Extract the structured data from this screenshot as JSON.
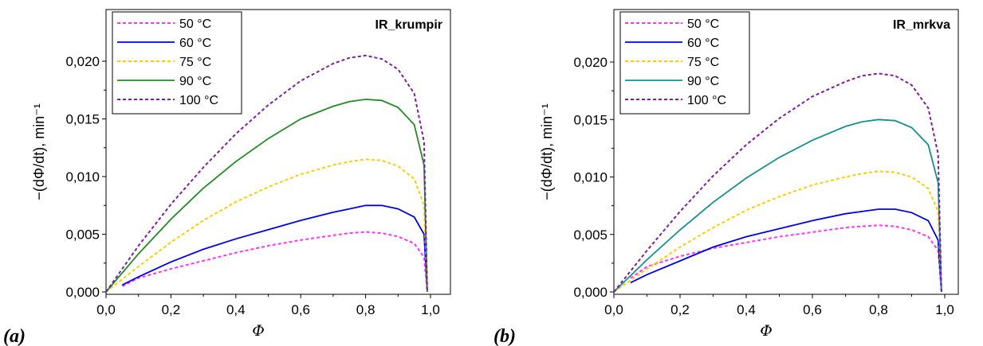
{
  "chart_data": [
    {
      "type": "line",
      "title": "IR_krumpir",
      "panel_label": "(a)",
      "xlabel": "Φ",
      "ylabel": "−(dΦ/dt), min⁻¹",
      "xlim": [
        0,
        1.05
      ],
      "ylim": [
        0,
        0.022
      ],
      "xticks": [
        "0,0",
        "0,2",
        "0,4",
        "0,6",
        "0,8",
        "1,0"
      ],
      "yticks": [
        "0,000",
        "0,005",
        "0,010",
        "0,015",
        "0,020"
      ],
      "legend_position": "top-left",
      "series": [
        {
          "name": "50 °C",
          "color": "#ff33ff",
          "dash": true,
          "x": [
            0.05,
            0.1,
            0.2,
            0.3,
            0.4,
            0.5,
            0.6,
            0.7,
            0.75,
            0.8,
            0.85,
            0.9,
            0.95,
            0.98,
            0.99
          ],
          "y": [
            0.0005,
            0.0012,
            0.002,
            0.0027,
            0.0034,
            0.004,
            0.0045,
            0.0049,
            0.0051,
            0.0052,
            0.0051,
            0.0048,
            0.0042,
            0.003,
            0.0
          ]
        },
        {
          "name": "60 °C",
          "color": "#0000ee",
          "dash": false,
          "x": [
            0.05,
            0.1,
            0.2,
            0.3,
            0.4,
            0.5,
            0.6,
            0.7,
            0.75,
            0.8,
            0.85,
            0.9,
            0.95,
            0.98,
            0.99
          ],
          "y": [
            0.0006,
            0.0013,
            0.0026,
            0.0037,
            0.0046,
            0.0054,
            0.0062,
            0.0069,
            0.0072,
            0.0075,
            0.0075,
            0.0072,
            0.0065,
            0.005,
            0.0
          ]
        },
        {
          "name": "75 °C",
          "color": "#ffcc00",
          "dash": true,
          "x": [
            0.0,
            0.1,
            0.2,
            0.3,
            0.4,
            0.5,
            0.6,
            0.7,
            0.75,
            0.8,
            0.85,
            0.9,
            0.95,
            0.98,
            0.99
          ],
          "y": [
            0.0,
            0.0022,
            0.0043,
            0.0062,
            0.0078,
            0.0091,
            0.0102,
            0.011,
            0.0113,
            0.0115,
            0.0114,
            0.0109,
            0.0098,
            0.0075,
            0.0
          ]
        },
        {
          "name": "90 °C",
          "color": "#228b22",
          "dash": false,
          "x": [
            0.0,
            0.1,
            0.2,
            0.3,
            0.4,
            0.5,
            0.6,
            0.7,
            0.75,
            0.8,
            0.85,
            0.9,
            0.95,
            0.98,
            0.99
          ],
          "y": [
            0.0,
            0.0033,
            0.0063,
            0.009,
            0.0113,
            0.0133,
            0.015,
            0.0161,
            0.0165,
            0.0167,
            0.0166,
            0.016,
            0.0145,
            0.011,
            0.0
          ]
        },
        {
          "name": "100 °C",
          "color": "#7b1fa2",
          "dash": true,
          "x": [
            0.0,
            0.1,
            0.2,
            0.3,
            0.4,
            0.5,
            0.6,
            0.7,
            0.75,
            0.8,
            0.85,
            0.9,
            0.95,
            0.98,
            0.99
          ],
          "y": [
            0.0,
            0.004,
            0.0076,
            0.0108,
            0.0137,
            0.0162,
            0.0183,
            0.0198,
            0.0203,
            0.0205,
            0.0202,
            0.0193,
            0.0172,
            0.013,
            0.0
          ]
        }
      ]
    },
    {
      "type": "line",
      "title": "IR_mrkva",
      "panel_label": "(b)",
      "xlabel": "Φ",
      "ylabel": "−(dΦ/dt), min⁻¹",
      "xlim": [
        0,
        1.05
      ],
      "ylim": [
        0,
        0.022
      ],
      "xticks": [
        "0,0",
        "0,2",
        "0,4",
        "0,6",
        "0,8",
        "1,0"
      ],
      "yticks": [
        "0,000",
        "0,005",
        "0,010",
        "0,015",
        "0,020"
      ],
      "legend_position": "top-left",
      "series": [
        {
          "name": "50 °C",
          "color": "#ff33ff",
          "dash": true,
          "x": [
            0.05,
            0.1,
            0.2,
            0.3,
            0.4,
            0.5,
            0.6,
            0.7,
            0.75,
            0.8,
            0.85,
            0.9,
            0.95,
            0.98,
            0.99
          ],
          "y": [
            0.0012,
            0.0022,
            0.0031,
            0.0038,
            0.0043,
            0.0048,
            0.0052,
            0.0056,
            0.0057,
            0.0058,
            0.0057,
            0.0054,
            0.0048,
            0.0036,
            0.0
          ]
        },
        {
          "name": "60 °C",
          "color": "#0000ee",
          "dash": false,
          "x": [
            0.05,
            0.1,
            0.2,
            0.3,
            0.4,
            0.5,
            0.6,
            0.7,
            0.75,
            0.8,
            0.85,
            0.9,
            0.95,
            0.98,
            0.99
          ],
          "y": [
            0.0008,
            0.0015,
            0.0027,
            0.0039,
            0.0048,
            0.0055,
            0.0062,
            0.0068,
            0.007,
            0.0072,
            0.0072,
            0.0069,
            0.0062,
            0.0045,
            0.0
          ]
        },
        {
          "name": "75 °C",
          "color": "#ffcc00",
          "dash": true,
          "x": [
            0.0,
            0.1,
            0.2,
            0.3,
            0.4,
            0.5,
            0.6,
            0.7,
            0.75,
            0.8,
            0.85,
            0.9,
            0.95,
            0.98,
            0.99
          ],
          "y": [
            0.0,
            0.002,
            0.0039,
            0.0056,
            0.0071,
            0.0083,
            0.0093,
            0.01,
            0.0103,
            0.0105,
            0.0104,
            0.01,
            0.009,
            0.007,
            0.0
          ]
        },
        {
          "name": "90 °C",
          "color": "#178f8f",
          "dash": false,
          "x": [
            0.0,
            0.1,
            0.2,
            0.3,
            0.4,
            0.5,
            0.6,
            0.7,
            0.75,
            0.8,
            0.85,
            0.9,
            0.95,
            0.98,
            0.99
          ],
          "y": [
            0.0,
            0.0028,
            0.0054,
            0.0078,
            0.0099,
            0.0117,
            0.0132,
            0.0144,
            0.0148,
            0.015,
            0.0149,
            0.0143,
            0.0128,
            0.0095,
            0.0
          ]
        },
        {
          "name": "100 °C",
          "color": "#7b1fa2",
          "dash": true,
          "x": [
            0.0,
            0.1,
            0.2,
            0.3,
            0.4,
            0.5,
            0.6,
            0.7,
            0.75,
            0.8,
            0.85,
            0.9,
            0.95,
            0.98,
            0.99
          ],
          "y": [
            0.0,
            0.0036,
            0.007,
            0.0101,
            0.0128,
            0.0151,
            0.017,
            0.0183,
            0.0188,
            0.019,
            0.0188,
            0.018,
            0.016,
            0.012,
            0.0
          ]
        }
      ]
    }
  ]
}
